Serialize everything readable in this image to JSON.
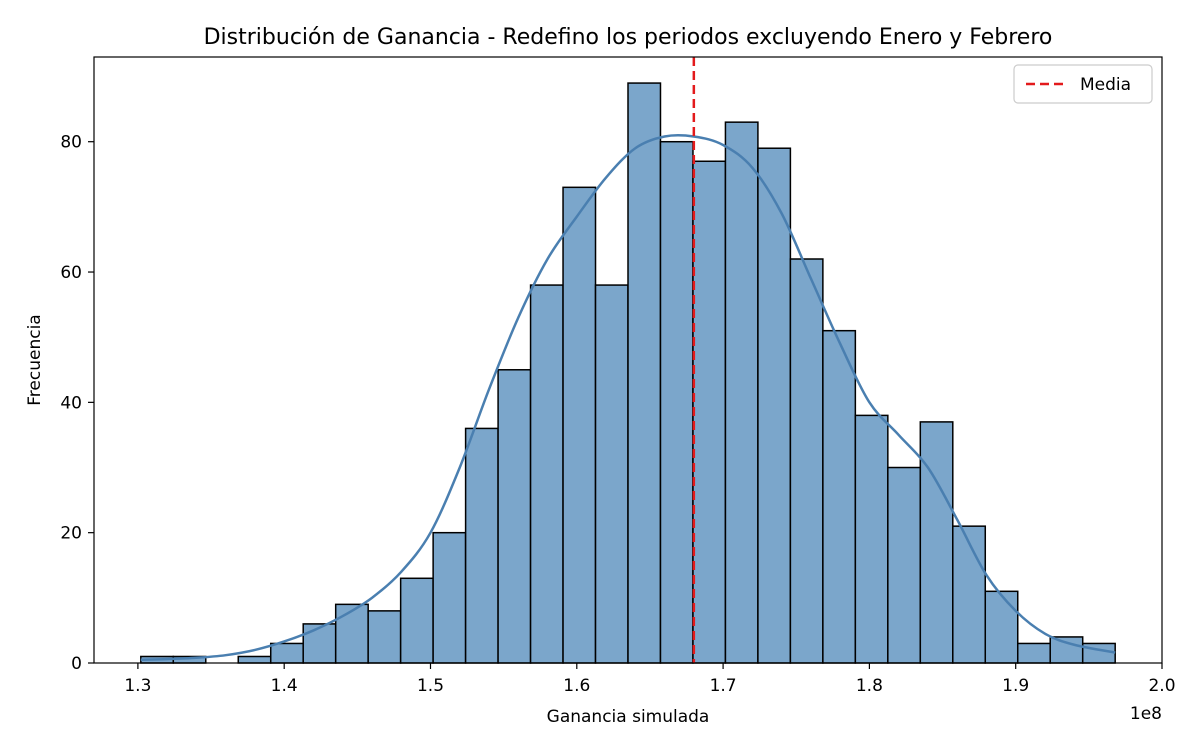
{
  "chart_data": {
    "type": "bar",
    "title": "Distribución de Ganancia - Redefino los periodos excluyendo Enero y Febrero",
    "xlabel": "Ganancia simulada",
    "ylabel": "Frecuencia",
    "x_offset_text": "1e8",
    "xlim": [
      1.27,
      2.0
    ],
    "ylim": [
      0,
      93
    ],
    "xticks": [
      1.3,
      1.4,
      1.5,
      1.6,
      1.7,
      1.8,
      1.9,
      2.0
    ],
    "xtick_labels": [
      "1.3",
      "1.4",
      "1.5",
      "1.6",
      "1.7",
      "1.8",
      "1.9",
      "2.0"
    ],
    "yticks": [
      0,
      20,
      40,
      60,
      80
    ],
    "ytick_labels": [
      "0",
      "20",
      "40",
      "60",
      "80"
    ],
    "grid": false,
    "legend": {
      "placement": "top-right",
      "entries": [
        {
          "label": "Media",
          "style": "dashed-line"
        }
      ]
    },
    "bins": {
      "start": 1.302,
      "width": 0.0222,
      "counts": [
        1,
        1,
        0,
        1,
        3,
        6,
        9,
        8,
        13,
        20,
        36,
        45,
        58,
        73,
        58,
        89,
        80,
        77,
        83,
        79,
        62,
        51,
        38,
        30,
        37,
        21,
        11,
        3,
        4,
        3
      ]
    },
    "mean": 1.68,
    "kde": {
      "x": [
        1.302,
        1.32,
        1.34,
        1.36,
        1.38,
        1.4,
        1.42,
        1.44,
        1.46,
        1.48,
        1.5,
        1.52,
        1.54,
        1.56,
        1.58,
        1.6,
        1.62,
        1.64,
        1.66,
        1.68,
        1.7,
        1.72,
        1.74,
        1.76,
        1.78,
        1.8,
        1.82,
        1.84,
        1.86,
        1.88,
        1.9,
        1.92,
        1.94,
        1.968
      ],
      "y": [
        0.5,
        0.6,
        0.8,
        1.2,
        2.0,
        3.3,
        5.0,
        7.2,
        10.0,
        14.0,
        20.0,
        30.0,
        42.0,
        53.0,
        62.0,
        68.5,
        74.5,
        79.0,
        80.8,
        80.8,
        79.5,
        76.0,
        69.0,
        59.0,
        49.0,
        40.0,
        35.0,
        30.0,
        22.0,
        13.5,
        8.0,
        4.5,
        2.8,
        1.6
      ]
    },
    "colors": {
      "bar_fill": "#7ba6cb",
      "bar_edge": "#000000",
      "kde_line": "#4a7fb0",
      "mean_line": "#e31a1c"
    }
  }
}
